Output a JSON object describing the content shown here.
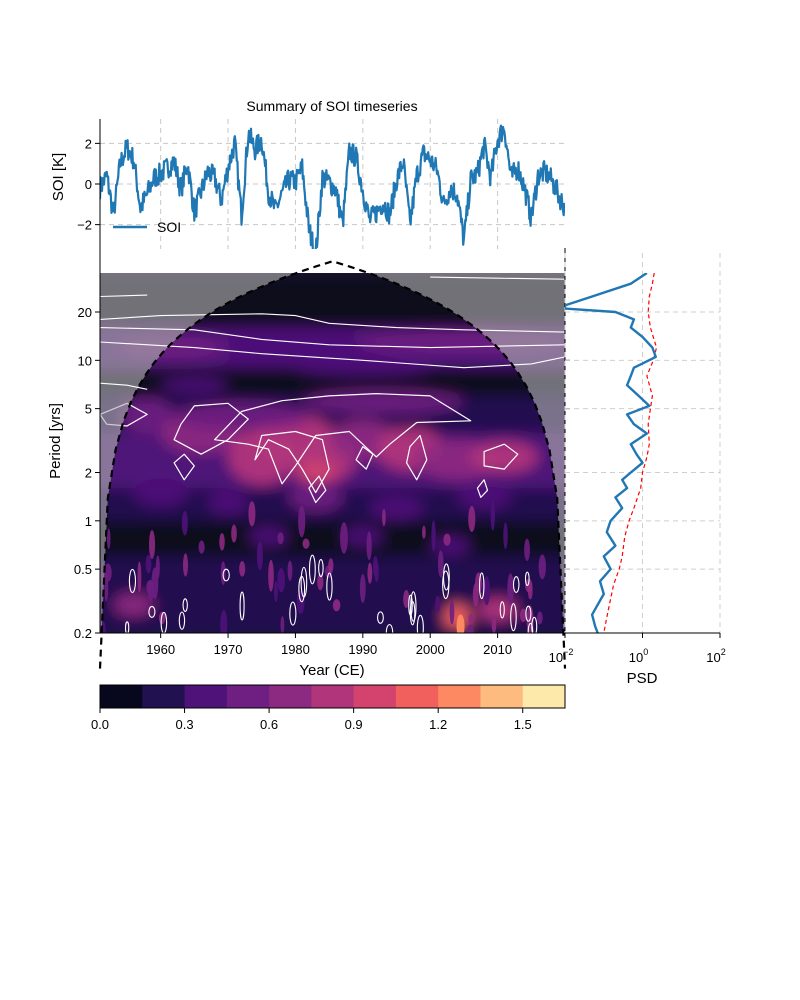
{
  "chart_data": [
    {
      "type": "line",
      "title": "Summary of SOI timeseries",
      "ylabel": "SOI [K]",
      "xlim": [
        1951,
        2020
      ],
      "ylim": [
        -3.2,
        3.2
      ],
      "yticks": [
        2,
        0,
        -2
      ],
      "ytick_labels": [
        "2",
        "0",
        "−2"
      ],
      "grid": true,
      "legend": {
        "position": "lower-left",
        "entries": [
          "SOI"
        ]
      },
      "series": [
        {
          "name": "SOI",
          "color": "#1f77b4",
          "x": [
            1951,
            1952,
            1953,
            1954,
            1955,
            1956,
            1957,
            1958,
            1959,
            1960,
            1961,
            1962,
            1963,
            1964,
            1965,
            1966,
            1967,
            1968,
            1969,
            1970,
            1971,
            1972,
            1973,
            1974,
            1975,
            1976,
            1977,
            1978,
            1979,
            1980,
            1981,
            1982,
            1983,
            1984,
            1985,
            1986,
            1987,
            1988,
            1989,
            1990,
            1991,
            1992,
            1993,
            1994,
            1995,
            1996,
            1997,
            1998,
            1999,
            2000,
            2001,
            2002,
            2003,
            2004,
            2005,
            2006,
            2007,
            2008,
            2009,
            2010,
            2011,
            2012,
            2013,
            2014,
            2015,
            2016,
            2017,
            2018,
            2019,
            2020
          ],
          "values": [
            -0.2,
            0.4,
            -1.5,
            1.0,
            1.8,
            1.2,
            -1.2,
            -0.5,
            0.3,
            0.5,
            0.8,
            1.1,
            -0.3,
            1.0,
            -1.4,
            -0.4,
            0.6,
            0.3,
            -0.8,
            0.8,
            2.0,
            -1.5,
            2.5,
            1.7,
            2.2,
            -0.4,
            -1.3,
            -0.5,
            0.2,
            0.1,
            0.8,
            -2.2,
            -3.5,
            0.3,
            0.1,
            -0.3,
            -2.0,
            1.6,
            1.3,
            -0.3,
            -1.8,
            -1.4,
            -0.9,
            -1.5,
            0.2,
            1.1,
            -2.0,
            0.4,
            1.5,
            1.2,
            0.7,
            -1.0,
            -0.2,
            -0.5,
            -2.8,
            0.2,
            0.5,
            1.9,
            0.3,
            2.2,
            2.8,
            0.3,
            0.8,
            -0.2,
            -1.7,
            0.4,
            0.6,
            0.2,
            -0.5,
            -1.2
          ]
        }
      ]
    },
    {
      "type": "heatmap",
      "xlabel": "Year (CE)",
      "ylabel": "Period [yrs]",
      "xlim": [
        1951,
        2020
      ],
      "xticks": [
        1960,
        1970,
        1980,
        1990,
        2000,
        2010
      ],
      "xtick_labels": [
        "1960",
        "1970",
        "1980",
        "1990",
        "2000",
        "2010"
      ],
      "yscale": "log",
      "ylim": [
        0.2,
        35
      ],
      "yticks": [
        20,
        10,
        5,
        2,
        1,
        0.5,
        0.2
      ],
      "ytick_labels": [
        "20",
        "10",
        "5",
        "2",
        "1",
        "0.5",
        "0.2"
      ],
      "colormap": "magma",
      "cone_of_influence": true,
      "significance_contours": true,
      "colorbar": {
        "ticks": [
          0.0,
          0.3,
          0.6,
          0.9,
          1.2,
          1.5
        ],
        "tick_labels": [
          "0.0",
          "0.3",
          "0.6",
          "0.9",
          "1.2",
          "1.5"
        ],
        "levels": [
          0.0,
          0.15,
          0.3,
          0.45,
          0.6,
          0.75,
          0.9,
          1.05,
          1.2,
          1.35,
          1.5,
          1.65
        ],
        "colors": [
          "#07071d",
          "#221150",
          "#4e1278",
          "#6e1f81",
          "#8c2981",
          "#b1357b",
          "#d3436e",
          "#f1605d",
          "#fc8961",
          "#febb80",
          "#fde9a9"
        ]
      }
    },
    {
      "type": "line",
      "xlabel": "PSD",
      "xscale": "log",
      "xlim": [
        0.01,
        100
      ],
      "xticks": [
        0.01,
        1,
        100
      ],
      "xtick_labels": [
        {
          "base": "10",
          "exp": "−2"
        },
        {
          "base": "10",
          "exp": "0"
        },
        {
          "base": "10",
          "exp": "2"
        }
      ],
      "grid": true,
      "series": [
        {
          "color": "#1f77b4",
          "style": "solid",
          "period": [
            35,
            30,
            25,
            22,
            21,
            20,
            18,
            16,
            14,
            12,
            10.5,
            9,
            8,
            7,
            6,
            5.2,
            4.6,
            4,
            3.5,
            3,
            2.6,
            2.3,
            2,
            1.8,
            1.6,
            1.4,
            1.2,
            1,
            0.85,
            0.7,
            0.6,
            0.5,
            0.42,
            0.35,
            0.3,
            0.26,
            0.22,
            0.2
          ],
          "values": [
            1.3,
            0.5,
            0.05,
            0.01,
            0.01,
            0.2,
            0.6,
            0.5,
            1.0,
            1.8,
            2.2,
            0.6,
            0.5,
            0.4,
            0.8,
            1.5,
            0.4,
            0.6,
            1.3,
            0.5,
            0.7,
            1.0,
            0.5,
            0.3,
            0.4,
            0.2,
            0.3,
            0.15,
            0.12,
            0.2,
            0.1,
            0.15,
            0.08,
            0.1,
            0.07,
            0.05,
            0.06,
            0.07
          ]
        },
        {
          "color": "#ff0000",
          "style": "dashed",
          "period": [
            35,
            30,
            25,
            20,
            16,
            12,
            10,
            8,
            6,
            5,
            4,
            3,
            2.5,
            2,
            1.6,
            1.2,
            1,
            0.8,
            0.6,
            0.5,
            0.4,
            0.3,
            0.25,
            0.2
          ],
          "values": [
            2.0,
            1.8,
            1.5,
            1.4,
            1.6,
            2.3,
            1.9,
            1.3,
            1.8,
            1.6,
            1.4,
            1.5,
            1.3,
            1.0,
            0.9,
            0.6,
            0.45,
            0.35,
            0.3,
            0.25,
            0.18,
            0.14,
            0.12,
            0.1
          ]
        }
      ]
    }
  ]
}
